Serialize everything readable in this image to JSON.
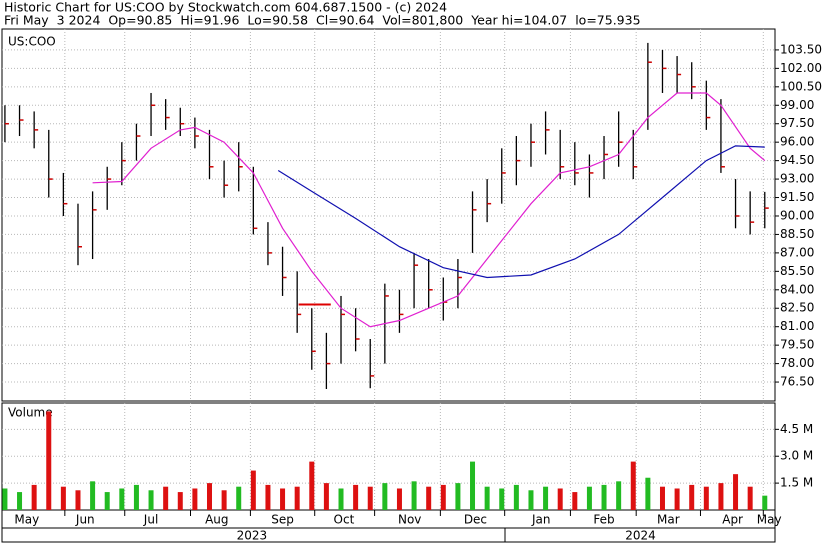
{
  "chart_data": {
    "type": "ohlc",
    "title": "Historic Chart for US:COO by Stockwatch.com 604.687.1500 - (c) 2024",
    "subtitle": "Fri May  3 2024  Op=90.85  Hi=91.96  Lo=90.58  Cl=90.64  Vol=801,800  Year hi=104.07  lo=75.935",
    "symbol_label": "US:COO",
    "volume_label": "Volume",
    "highs": [
      99,
      99,
      98.5,
      97,
      93.5,
      91,
      92,
      94,
      96,
      97.5,
      100,
      99.5,
      98.8,
      98,
      97,
      94.5,
      96,
      94,
      89.5,
      87.5,
      85.5,
      82.5,
      80.5,
      83.5,
      82.5,
      80,
      84.5,
      84,
      87,
      86.5,
      85,
      86.5,
      92,
      93,
      95.5,
      96.5,
      97.5,
      98.5,
      97,
      96,
      95,
      96.5,
      98.5,
      97,
      104.07,
      103.5,
      103,
      102.5,
      101,
      99.5,
      93,
      92,
      91.96
    ],
    "lows": [
      96,
      96.5,
      95.5,
      91.5,
      90,
      86,
      86.5,
      90.5,
      92.5,
      94.5,
      96.5,
      97,
      96.5,
      95.5,
      93,
      91.5,
      92,
      88.5,
      86,
      83.5,
      80.5,
      77.5,
      75.935,
      78,
      79,
      76,
      78,
      80.5,
      82.5,
      82.5,
      81.5,
      82.5,
      87,
      89.5,
      91,
      92.5,
      94,
      95,
      93,
      92.5,
      91.5,
      93,
      94,
      93,
      97,
      100,
      100,
      99.5,
      97,
      93.5,
      89,
      88.5,
      89
    ],
    "closes": [
      97.5,
      97.8,
      97,
      93,
      91,
      87.5,
      90.5,
      93,
      94.5,
      96.5,
      99,
      98,
      97.5,
      96.5,
      94,
      92.5,
      94,
      89,
      87,
      85,
      82,
      79,
      78,
      82,
      80,
      77,
      83.5,
      82,
      86,
      84,
      83,
      85,
      90.5,
      91,
      93.5,
      94.5,
      96,
      97,
      94,
      93.5,
      93.5,
      95,
      96,
      94,
      102.5,
      102,
      101.5,
      100.5,
      98,
      94,
      90,
      89.5,
      90.64
    ],
    "volume": [
      1.2,
      1.0,
      1.4,
      5.5,
      1.3,
      1.1,
      1.6,
      1.0,
      1.2,
      1.4,
      1.1,
      1.3,
      1.0,
      1.2,
      1.5,
      1.1,
      1.3,
      2.2,
      1.4,
      1.2,
      1.3,
      2.7,
      1.5,
      1.2,
      1.4,
      1.3,
      1.5,
      1.2,
      1.6,
      1.3,
      1.4,
      1.5,
      2.7,
      1.3,
      1.2,
      1.4,
      1.1,
      1.3,
      1.2,
      1.0,
      1.3,
      1.4,
      1.6,
      2.7,
      1.8,
      1.3,
      1.2,
      1.4,
      1.3,
      1.5,
      2.0,
      1.3,
      0.8
    ],
    "bar_color": "#000000",
    "close_color": "#cc0000",
    "volume_up_color": "#22bb22",
    "volume_down_color": "#dd1111",
    "ma_lines": [
      {
        "color": "#e020d0",
        "x": [
          6,
          8,
          10,
          12,
          13,
          15,
          17,
          19,
          21,
          23,
          25,
          27,
          29,
          31,
          32,
          34,
          36,
          38,
          40,
          42,
          44,
          46,
          48,
          49,
          51,
          52
        ],
        "values": [
          92.7,
          92.8,
          95.5,
          97,
          97.2,
          96,
          93.5,
          89,
          85.5,
          82.5,
          81,
          81.5,
          82.5,
          83.5,
          85,
          88,
          91,
          93.5,
          94,
          95,
          98,
          100,
          100,
          99,
          95.5,
          94.5
        ]
      },
      {
        "color": "#1010b0",
        "x": [
          18.7,
          21,
          24,
          27,
          30,
          33,
          36,
          39,
          42,
          45,
          48,
          50,
          52
        ],
        "values": [
          93.7,
          92,
          89.8,
          87.5,
          85.8,
          85,
          85.2,
          86.5,
          88.5,
          91.5,
          94.5,
          95.7,
          95.6
        ]
      }
    ],
    "reference_line": {
      "value": 82.8,
      "x": [
        20.1,
        22.3
      ],
      "color": "#dd0000"
    },
    "xlim": [
      -0.2,
      52.7
    ],
    "ylim": [
      74.96,
      105.2
    ],
    "yticks": [
      {
        "value": 76.5,
        "label": "76.50"
      },
      {
        "value": 78,
        "label": "78.00"
      },
      {
        "value": 79.5,
        "label": "79.50"
      },
      {
        "value": 81,
        "label": "81.00"
      },
      {
        "value": 82.5,
        "label": "82.50"
      },
      {
        "value": 84,
        "label": "84.00"
      },
      {
        "value": 85.5,
        "label": "85.50"
      },
      {
        "value": 87,
        "label": "87.00"
      },
      {
        "value": 88.5,
        "label": "88.50"
      },
      {
        "value": 90,
        "label": "90.00"
      },
      {
        "value": 91.5,
        "label": "91.50"
      },
      {
        "value": 93,
        "label": "93.00"
      },
      {
        "value": 94.5,
        "label": "94.50"
      },
      {
        "value": 96,
        "label": "96.00"
      },
      {
        "value": 97.5,
        "label": "97.50"
      },
      {
        "value": 99,
        "label": "99.00"
      },
      {
        "value": 100.5,
        "label": "100.50"
      },
      {
        "value": 102,
        "label": "102.00"
      },
      {
        "value": 103.5,
        "label": "103.50"
      }
    ],
    "volume_ylim": [
      0,
      5.97
    ],
    "volume_yticks": [
      {
        "value": 1.5,
        "label": "1.5 M"
      },
      {
        "value": 3.0,
        "label": "3.0 M"
      },
      {
        "value": 4.5,
        "label": "4.5 M"
      }
    ],
    "xticks": [
      {
        "value": 1.5,
        "label": "May"
      },
      {
        "value": 5.5,
        "label": "Jun"
      },
      {
        "value": 10,
        "label": "Jul"
      },
      {
        "value": 14.5,
        "label": "Aug"
      },
      {
        "value": 19,
        "label": "Sep"
      },
      {
        "value": 23.2,
        "label": "Oct"
      },
      {
        "value": 27.7,
        "label": "Nov"
      },
      {
        "value": 32.2,
        "label": "Dec"
      },
      {
        "value": 36.7,
        "label": "Jan"
      },
      {
        "value": 41,
        "label": "Feb"
      },
      {
        "value": 45.4,
        "label": "Mar"
      },
      {
        "value": 49.8,
        "label": "Apr"
      },
      {
        "value": 52.3,
        "label": "May"
      }
    ],
    "xgrid": [
      4.1,
      8.2,
      12.7,
      16.8,
      21.2,
      25.3,
      29.8,
      34.2,
      38.7,
      43.2,
      47.6,
      51.9
    ],
    "year_labels": [
      {
        "value": 16.9,
        "label": "2023"
      },
      {
        "value": 43.5,
        "label": "2024"
      }
    ],
    "grid": true
  }
}
